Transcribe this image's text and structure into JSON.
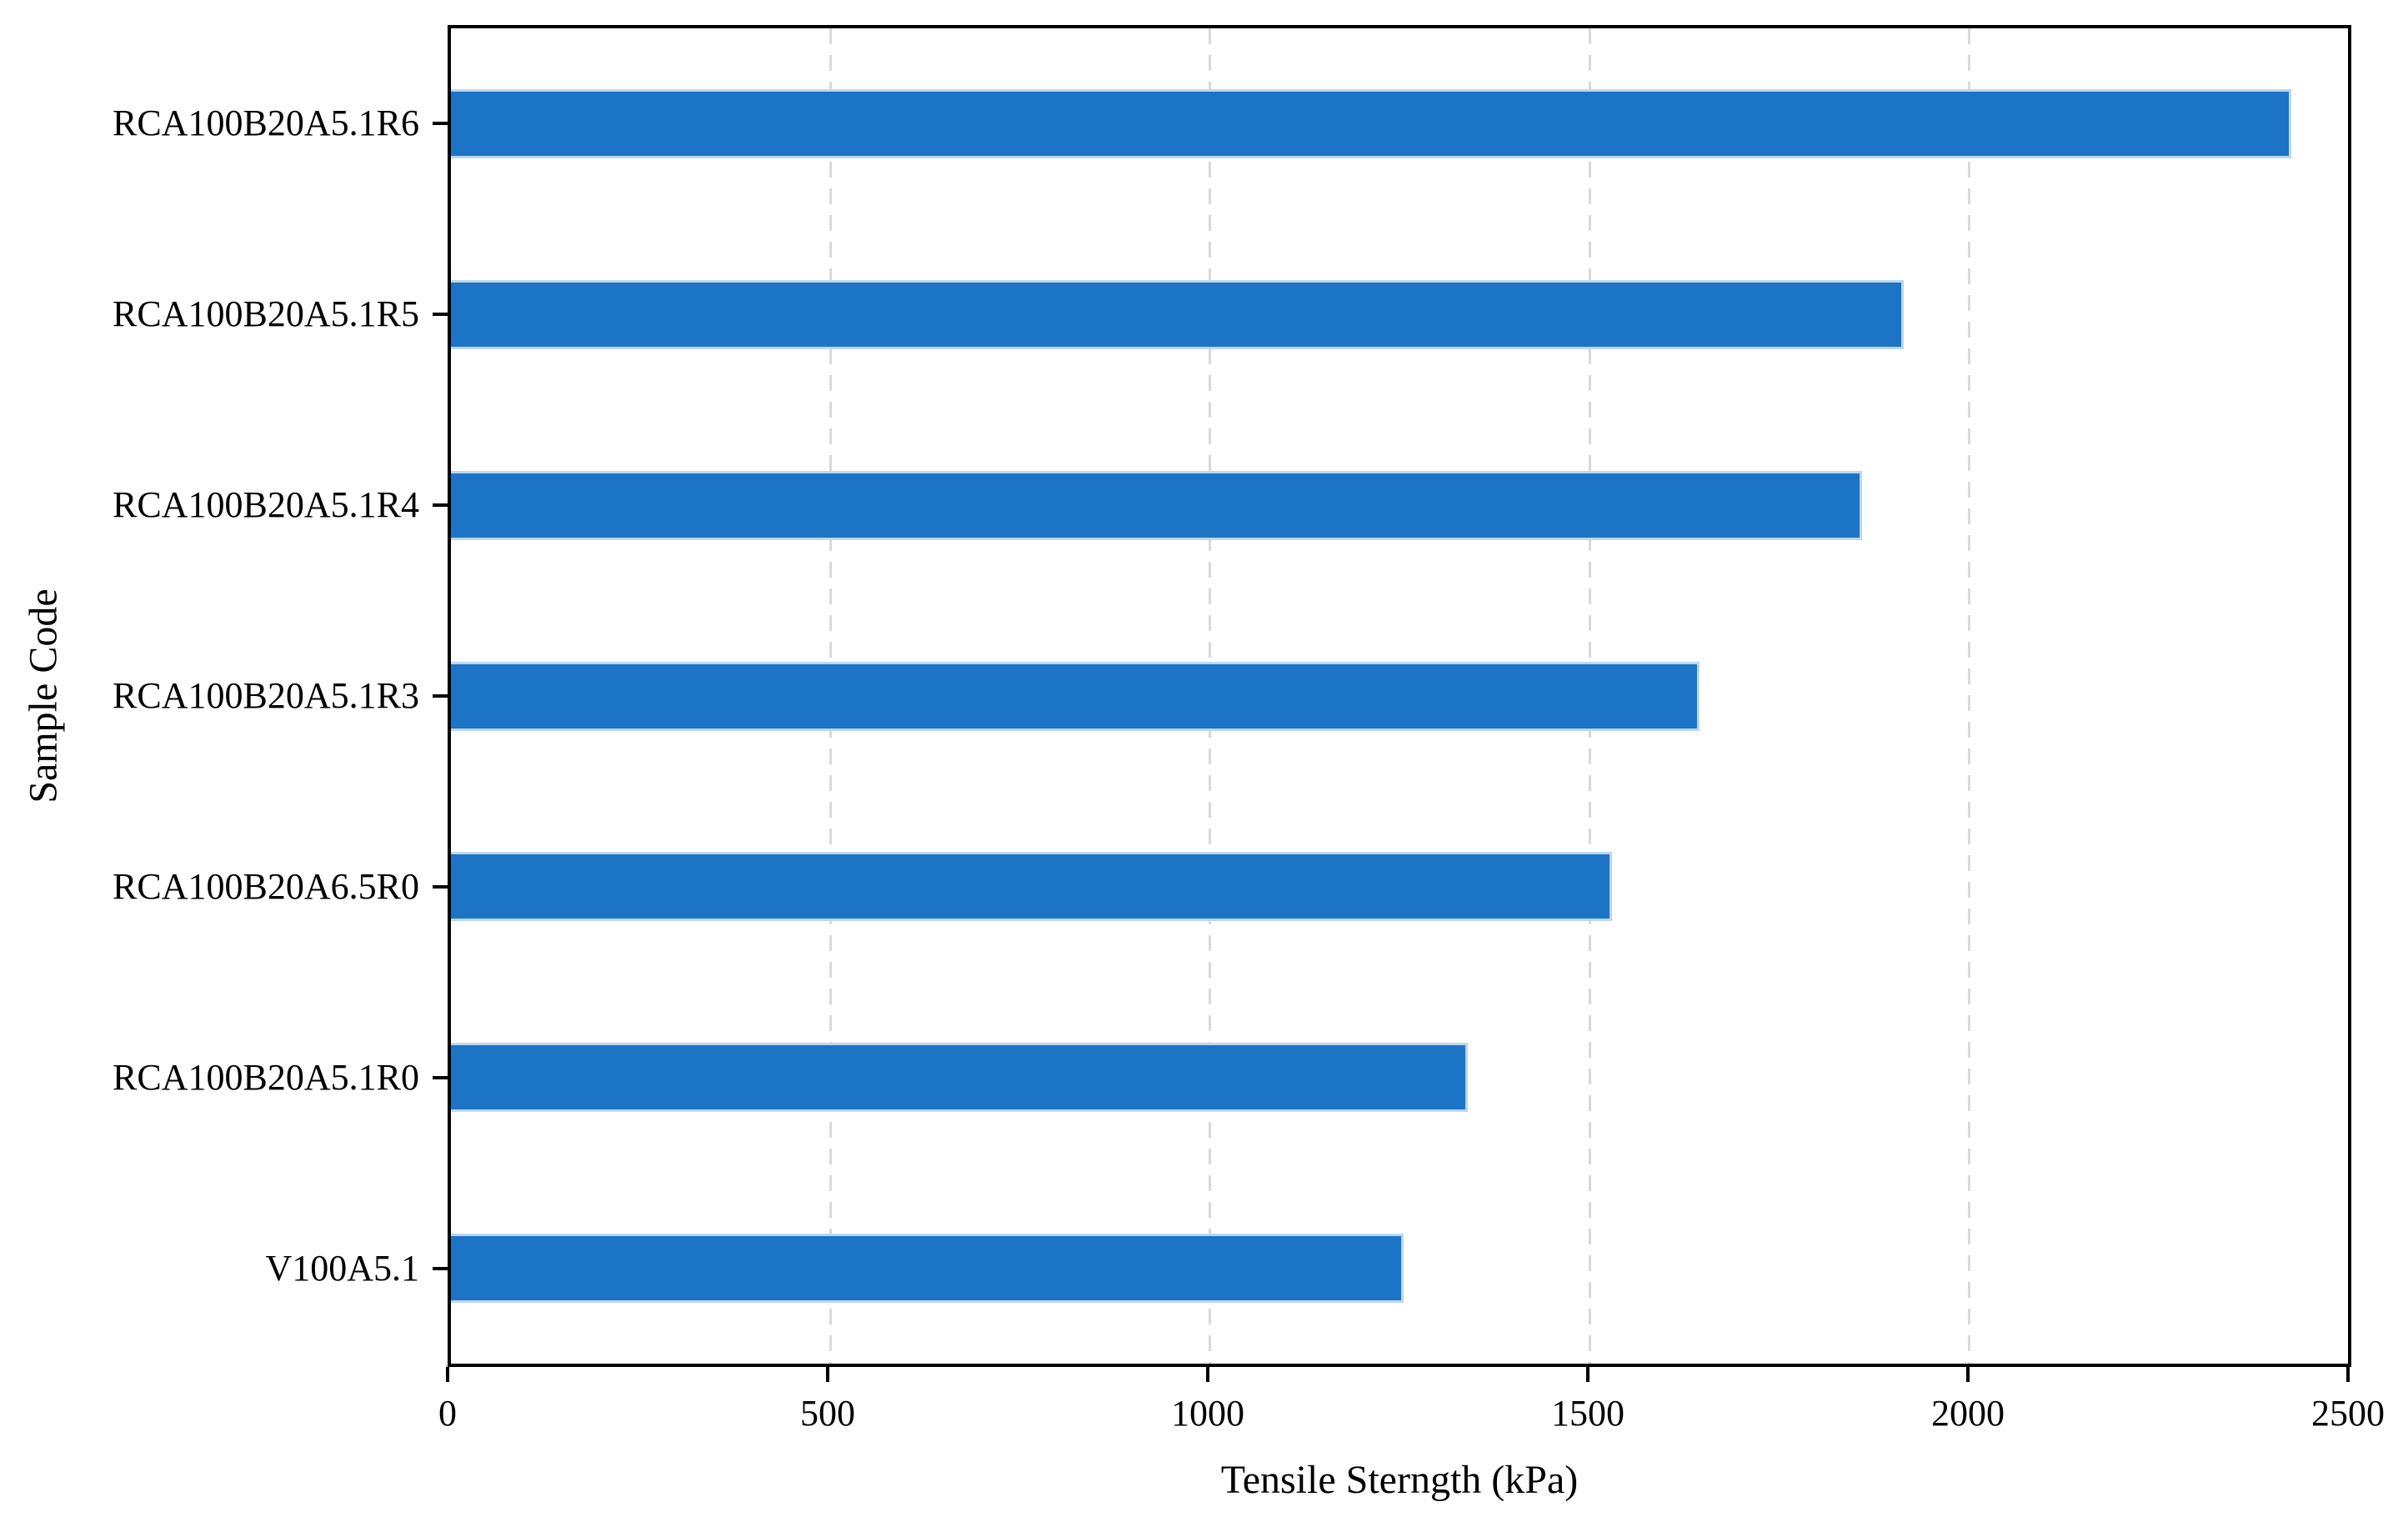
{
  "figure": {
    "background_color": "#ffffff",
    "axis_color": "#000000"
  },
  "chart_data": {
    "type": "bar",
    "orientation": "horizontal",
    "title": "",
    "xlabel": "Tensile Sterngth (kPa)",
    "ylabel": "Sample Code",
    "categories": [
      "RCA100B20A5.1R6",
      "RCA100B20A5.1R5",
      "RCA100B20A5.1R4",
      "RCA100B20A5.1R3",
      "RCA100B20A6.5R0",
      "RCA100B20A5.1R0",
      "V100A5.1"
    ],
    "values": [
      2425,
      1915,
      1860,
      1645,
      1530,
      1340,
      1255
    ],
    "xlim": [
      0,
      2500
    ],
    "xticks": [
      0,
      500,
      1000,
      1500,
      2000,
      2500
    ],
    "grid": "vertical dashed gridlines at x ticks",
    "legend": "none",
    "bar_color": "#1b74c5",
    "bar_edge_color": "#bdd7ee",
    "grid_color": "#d9d9d9"
  }
}
